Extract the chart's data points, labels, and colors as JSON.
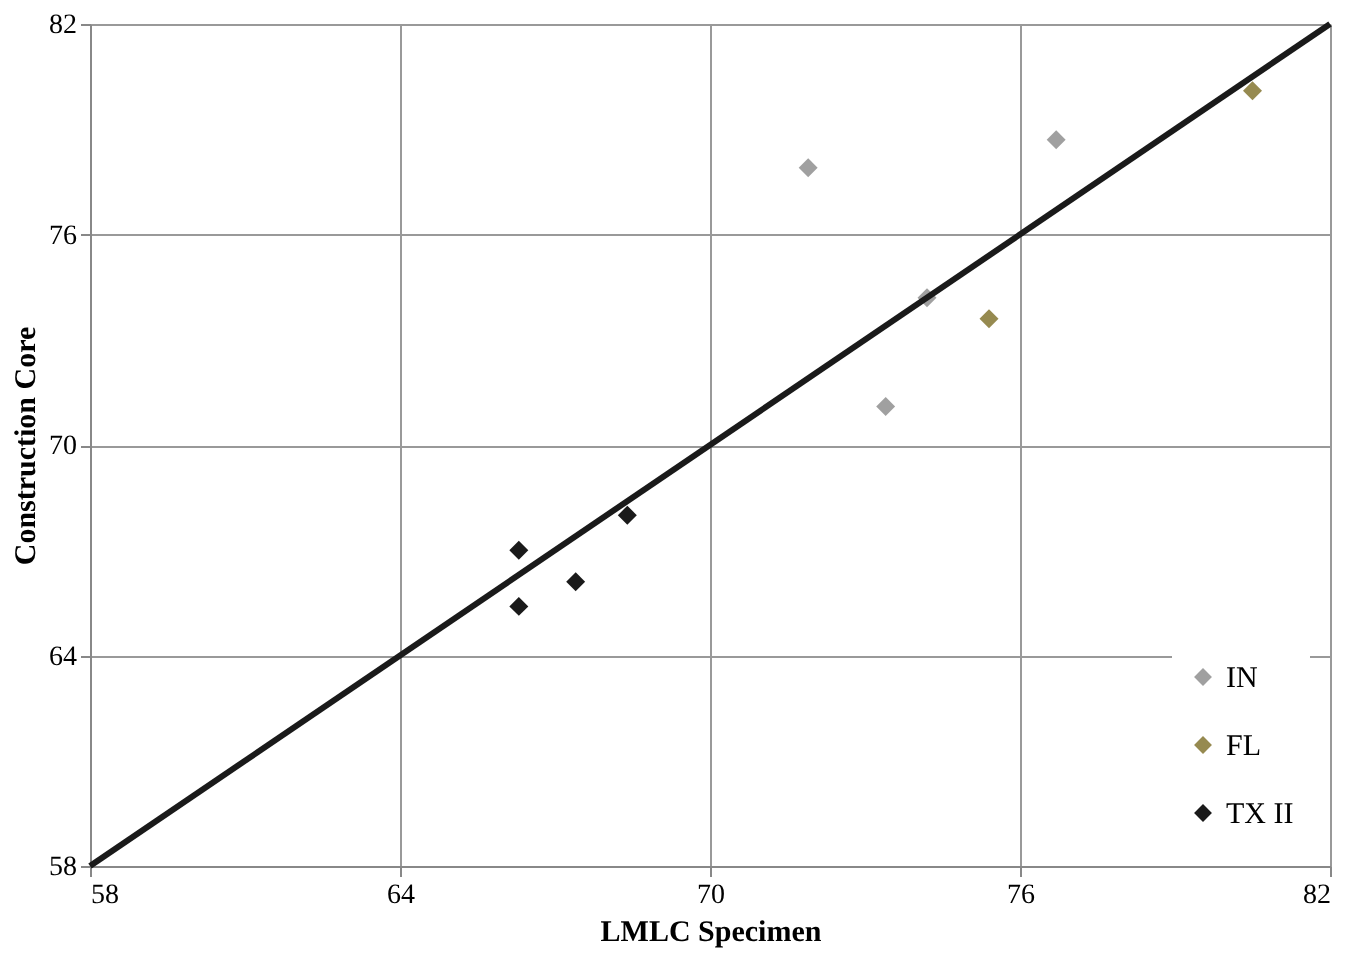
{
  "chart_data": {
    "type": "scatter",
    "xlabel": "LMLC Specimen",
    "ylabel": "Construction Core",
    "xlim": [
      58,
      82
    ],
    "ylim": [
      58,
      82
    ],
    "xticks": [
      58,
      64,
      70,
      76,
      82
    ],
    "yticks": [
      58,
      64,
      70,
      76,
      82
    ],
    "grid": true,
    "legend": "bottom right",
    "marker": "diamond",
    "series": [
      {
        "name": "IN",
        "color": "#a0a0a0",
        "x": [
          71.9,
          76.7,
          74.2,
          73.4
        ],
        "values": [
          77.9,
          78.7,
          74.2,
          71.1
        ]
      },
      {
        "name": "FL",
        "color": "#968a50",
        "x": [
          80.5,
          75.4
        ],
        "values": [
          80.1,
          73.6
        ]
      },
      {
        "name": "TX II",
        "color": "#1a1a1a",
        "x": [
          66.3,
          66.3,
          67.4,
          68.4
        ],
        "values": [
          67.0,
          65.4,
          66.1,
          68.0
        ]
      },
      {
        "type": "line",
        "marker": "none",
        "color": "#1a1a1a",
        "x": [
          58,
          82
        ],
        "values": [
          58,
          82
        ]
      }
    ]
  }
}
